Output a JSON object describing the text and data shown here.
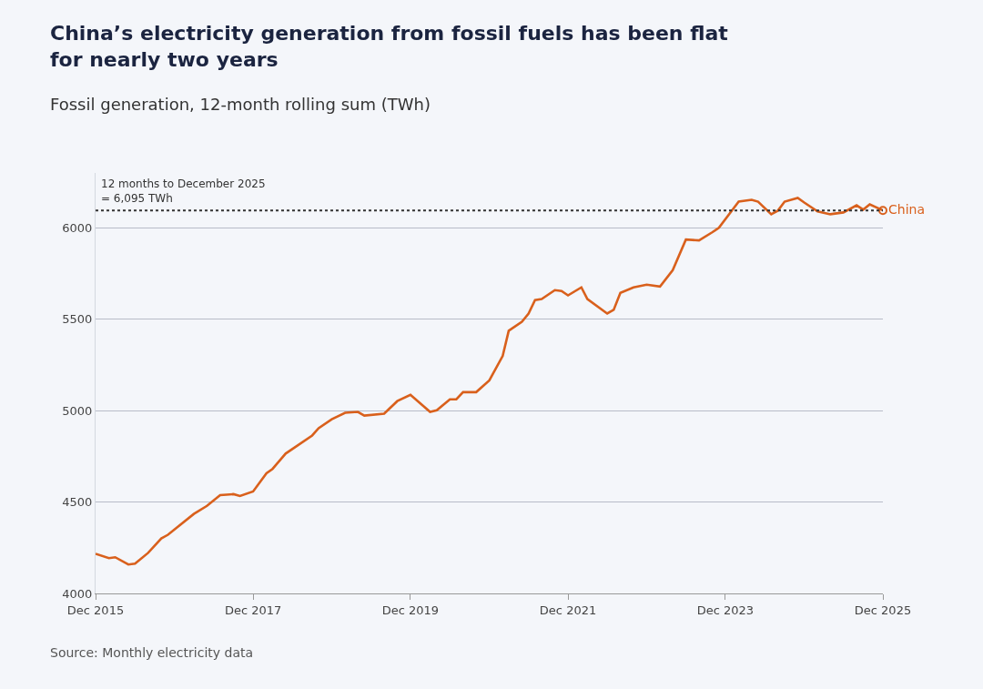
{
  "chart_data": {
    "type": "line",
    "title": "China’s electricity generation from fossil fuels has been flat for nearly two years",
    "subtitle": "Fossil generation, 12-month rolling sum (TWh)",
    "x": [
      "2015-12",
      "2016-02",
      "2016-03",
      "2016-05",
      "2016-06",
      "2016-08",
      "2016-10",
      "2016-11",
      "2017-03",
      "2017-05",
      "2017-07",
      "2017-09",
      "2017-10",
      "2017-12",
      "2018-02",
      "2018-03",
      "2018-05",
      "2018-09",
      "2018-10",
      "2018-12",
      "2019-02",
      "2019-04",
      "2019-05",
      "2019-08",
      "2019-10",
      "2019-12",
      "2020-03",
      "2020-04",
      "2020-06",
      "2020-07",
      "2020-08",
      "2020-10",
      "2020-12",
      "2021-02",
      "2021-03",
      "2021-05",
      "2021-06",
      "2021-07",
      "2021-08",
      "2021-10",
      "2021-11",
      "2021-12",
      "2022-02",
      "2022-03",
      "2022-06",
      "2022-07",
      "2022-08",
      "2022-10",
      "2022-12",
      "2023-02",
      "2023-04",
      "2023-06",
      "2023-08",
      "2023-10",
      "2023-11",
      "2024-02",
      "2024-04",
      "2024-05",
      "2024-07",
      "2024-08",
      "2024-09",
      "2024-11",
      "2024-12",
      "2025-02",
      "2025-04",
      "2025-06",
      "2025-08",
      "2025-09",
      "2025-10",
      "2025-12"
    ],
    "series": [
      {
        "name": "China",
        "color": "#d9601c",
        "values": [
          4217,
          4193,
          4198,
          4158,
          4163,
          4222,
          4301,
          4321,
          4435,
          4479,
          4538,
          4543,
          4533,
          4558,
          4657,
          4681,
          4765,
          4864,
          4904,
          4953,
          4988,
          4993,
          4973,
          4983,
          5052,
          5086,
          4993,
          5002,
          5062,
          5062,
          5101,
          5101,
          5165,
          5299,
          5437,
          5486,
          5531,
          5605,
          5610,
          5659,
          5654,
          5630,
          5674,
          5610,
          5531,
          5551,
          5644,
          5674,
          5689,
          5679,
          5768,
          5936,
          5931,
          5975,
          6000,
          6143,
          6153,
          6143,
          6074,
          6094,
          6143,
          6163,
          6138,
          6089,
          6074,
          6084,
          6123,
          6099,
          6128,
          6095
        ]
      }
    ],
    "xlim": [
      "2015-12",
      "2025-12"
    ],
    "xticks": [
      {
        "value": "2015-12",
        "label": "Dec 2015"
      },
      {
        "value": "2017-12",
        "label": "Dec 2017"
      },
      {
        "value": "2019-12",
        "label": "Dec 2019"
      },
      {
        "value": "2021-12",
        "label": "Dec 2021"
      },
      {
        "value": "2023-12",
        "label": "Dec 2023"
      },
      {
        "value": "2025-12",
        "label": "Dec 2025"
      }
    ],
    "ylim": [
      4000,
      6300
    ],
    "yticks": [
      4000,
      4500,
      5000,
      5500,
      6000
    ],
    "grid": "y",
    "legend": false,
    "marker": "none",
    "line_style": "solid",
    "ref_lines": [
      {
        "axis": "y",
        "value": 6095,
        "label": "12 months to December 2025\n= 6,095 TWh",
        "color": "#333333",
        "line_style": "dotted"
      }
    ],
    "annotations": [
      "Source: Monthly electricity data"
    ]
  }
}
